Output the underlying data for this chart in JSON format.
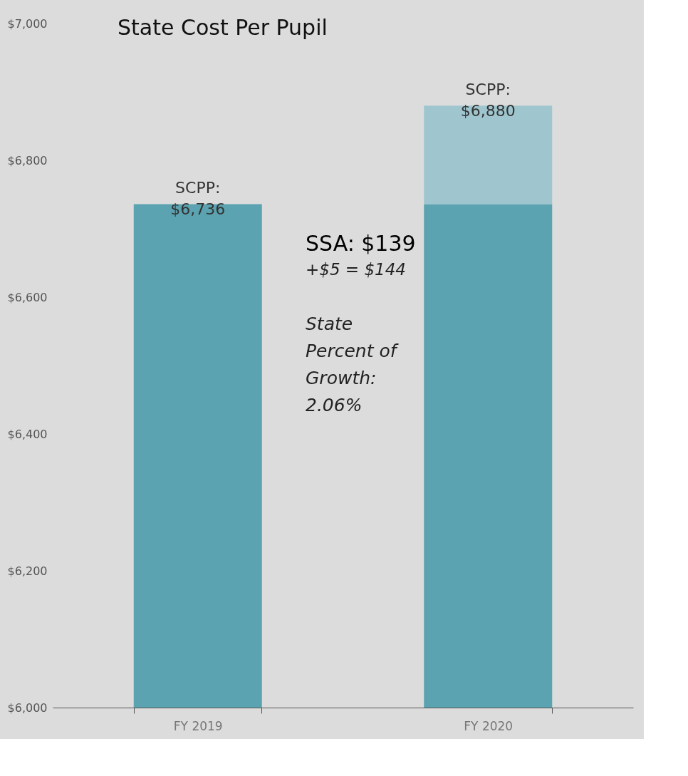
{
  "chart_data": {
    "type": "bar",
    "title": "State Cost Per Pupil",
    "stacked": true,
    "categories": [
      "FY 2019",
      "FY 2020"
    ],
    "series": [
      {
        "color": "#5ba3b0",
        "values": [
          6736,
          6736
        ]
      },
      {
        "color": "#9fc6cf",
        "values": [
          null,
          144
        ],
        "base": [
          null,
          6736
        ]
      }
    ],
    "totals": [
      "SCPP:\n$6,736",
      "SCPP:\n$6,880"
    ],
    "ylim": [
      6000,
      7000
    ],
    "yticks": [
      {
        "value": 6000,
        "label": "$6,000"
      },
      {
        "value": 6200,
        "label": "$6,200"
      },
      {
        "value": 6400,
        "label": "$6,400"
      },
      {
        "value": 6600,
        "label": "$6,600"
      },
      {
        "value": 6800,
        "label": "$6,800"
      },
      {
        "value": 7000,
        "label": "$7,000"
      }
    ],
    "annotations": [
      "SSA:  $139",
      "+$5 = $144",
      "State\nPercent of\nGrowth:\n2.06%"
    ]
  }
}
